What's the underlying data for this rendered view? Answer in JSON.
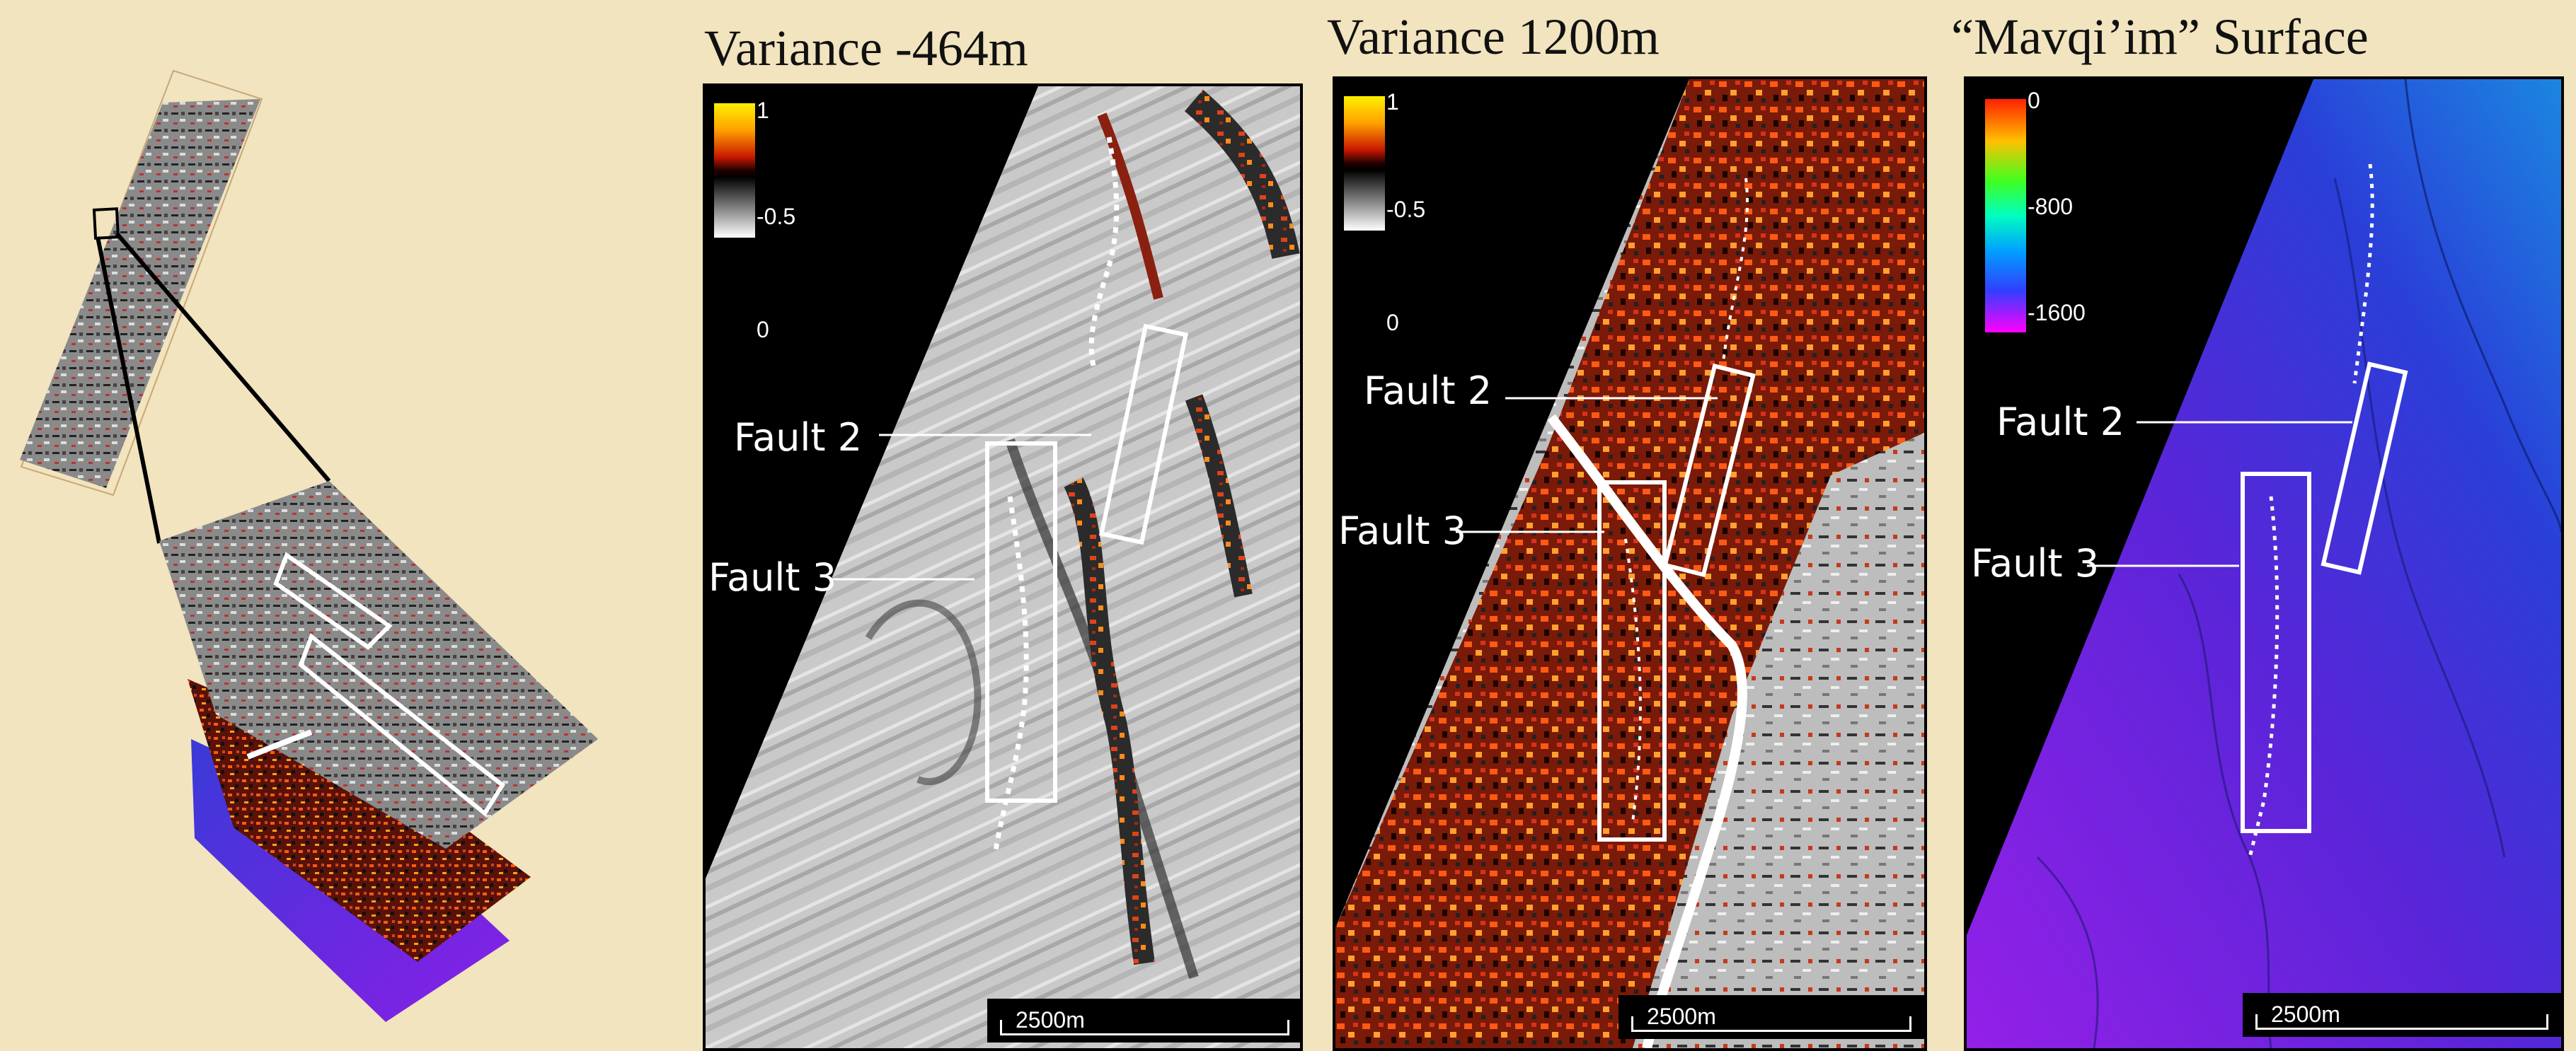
{
  "panels": [
    {
      "title": "Variance -464m",
      "colorbar_labels": [
        "1",
        "-0.5",
        "0"
      ],
      "fault_labels": [
        "Fault 2",
        "Fault 3"
      ],
      "scale_bar": "2500m"
    },
    {
      "title": "Variance 1200m",
      "colorbar_labels": [
        "1",
        "-0.5",
        "0"
      ],
      "fault_labels": [
        "Fault 2",
        "Fault 3"
      ],
      "scale_bar": "2500m"
    },
    {
      "title": "“Mavqi’im” Surface",
      "colorbar_labels": [
        "0",
        "-800",
        "-1600"
      ],
      "fault_labels": [
        "Fault 2",
        "Fault 3"
      ],
      "scale_bar": "2500m"
    }
  ],
  "colors": {
    "background": "#f1e4be",
    "fault_marker": "#ffffff",
    "surface_purple": "#5a25d8",
    "surface_blue": "#2a4fd6"
  }
}
